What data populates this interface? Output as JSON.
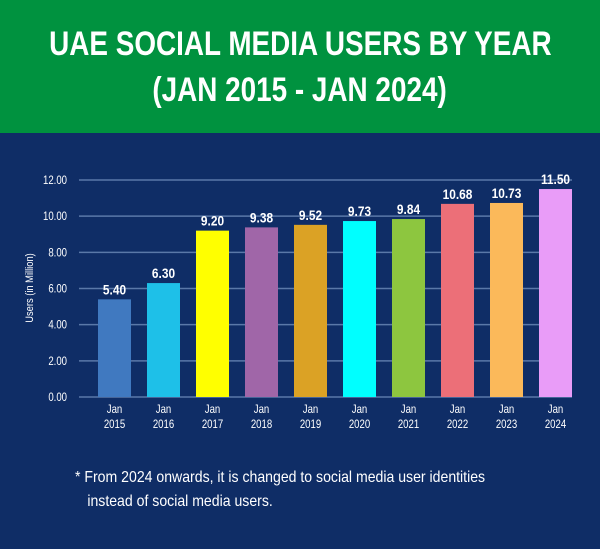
{
  "header": {
    "title_line1": "UAE SOCIAL MEDIA USERS BY YEAR",
    "title_line2": "(JAN 2015 - JAN 2024)"
  },
  "colors": {
    "header_bg": "#00923f",
    "chart_bg": "#0f2d66",
    "gridline": "#5a78a8",
    "text": "#ffffff"
  },
  "chart_data": {
    "type": "bar",
    "title": "UAE SOCIAL MEDIA USERS BY YEAR (JAN 2015 - JAN 2024)",
    "xlabel": "",
    "ylabel": "Users (in Million)",
    "ylim": [
      0,
      12
    ],
    "yticks": [
      "0.00",
      "2.00",
      "4.00",
      "6.00",
      "8.00",
      "10.00",
      "12.00"
    ],
    "ytick_values": [
      0,
      2,
      4,
      6,
      8,
      10,
      12
    ],
    "grid": true,
    "legend": "none",
    "categories": [
      [
        "Jan",
        "2015"
      ],
      [
        "Jan",
        "2016"
      ],
      [
        "Jan",
        "2017"
      ],
      [
        "Jan",
        "2018"
      ],
      [
        "Jan",
        "2019"
      ],
      [
        "Jan",
        "2020"
      ],
      [
        "Jan",
        "2021"
      ],
      [
        "Jan",
        "2022"
      ],
      [
        "Jan",
        "2023"
      ],
      [
        "Jan",
        "2024"
      ]
    ],
    "values": [
      5.4,
      6.3,
      9.2,
      9.38,
      9.52,
      9.73,
      9.84,
      10.68,
      10.73,
      11.5
    ],
    "value_labels": [
      "5.40",
      "6.30",
      "9.20",
      "9.38",
      "9.52",
      "9.73",
      "9.84",
      "10.68",
      "10.73",
      "11.50"
    ],
    "bar_colors": [
      "#4079c0",
      "#1ec0e8",
      "#ffff00",
      "#a066a8",
      "#dba225",
      "#00ffff",
      "#8dc63f",
      "#ec6f78",
      "#fbb95a",
      "#e99cf8"
    ]
  },
  "footnote": {
    "line1": "* From 2024 onwards, it is changed to social media user identities",
    "line2": "instead of social media users."
  }
}
